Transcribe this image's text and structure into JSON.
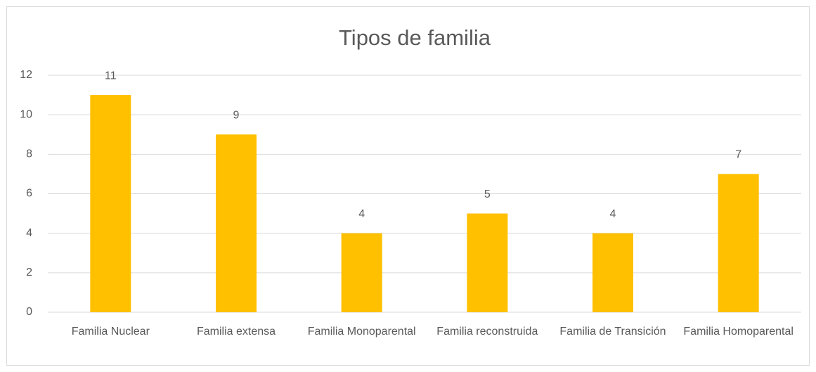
{
  "chart_data": {
    "type": "bar",
    "title": "Tipos de familia",
    "categories": [
      "Familia Nuclear",
      "Familia extensa",
      "Familia Monoparental",
      "Familia reconstruida",
      "Familia de Transición",
      "Familia Homoparental"
    ],
    "values": [
      11,
      9,
      4,
      5,
      4,
      7
    ],
    "color": "#ffc000",
    "ylim": [
      0,
      12
    ],
    "yticks": [
      0,
      2,
      4,
      6,
      8,
      10,
      12
    ],
    "grid": true
  }
}
